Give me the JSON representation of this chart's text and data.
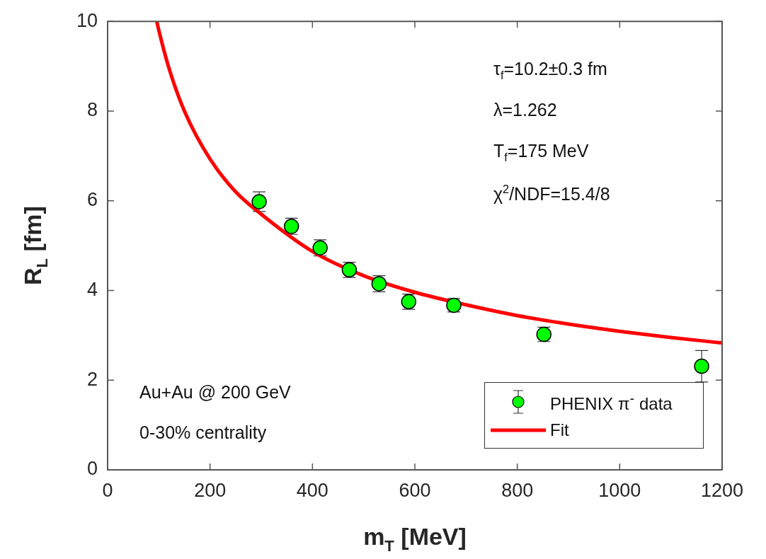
{
  "chart_data": {
    "type": "scatter",
    "xlabel": "m$_{T}$ [MeV]",
    "ylabel": "R$_{L}$ [fm]",
    "xlim": [
      0,
      1200
    ],
    "xticks": [
      0,
      200,
      400,
      600,
      800,
      1000,
      1200
    ],
    "ylim": [
      0,
      10
    ],
    "yticks": [
      0,
      2,
      4,
      6,
      8,
      10
    ],
    "grid": false,
    "legend": "bottom right",
    "marker": "circle",
    "series": [
      {
        "name": "PHENIX π$^{-}$ data",
        "color": "#00ff00",
        "x": [
          296,
          359,
          415,
          472,
          530,
          588,
          676,
          852,
          1160
        ],
        "values": [
          5.98,
          5.43,
          4.95,
          4.46,
          4.15,
          3.75,
          3.67,
          3.02,
          2.31
        ],
        "errors": [
          0.22,
          0.18,
          0.18,
          0.17,
          0.18,
          0.17,
          0.15,
          0.16,
          0.35
        ]
      },
      {
        "name": "Fit",
        "type": "line",
        "color": "#ff0000",
        "line_style": "solid",
        "marker": "none",
        "x": [
          96,
          100,
          120,
          150,
          200,
          250,
          300,
          400,
          500,
          600,
          700,
          800,
          900,
          1000,
          1100,
          1200
        ],
        "values": [
          10,
          9.8,
          8.95,
          8.0,
          6.93,
          6.2,
          5.7,
          4.87,
          4.33,
          3.96,
          3.68,
          3.44,
          3.25,
          3.09,
          2.95,
          2.83
        ]
      }
    ],
    "annotations": [
      "τ$_{f}$=10.2±0.3 fm",
      "λ=1.262",
      "T$_{f}$=175 MeV",
      "χ$^{2}$/NDF=15.4/8",
      "Au+Au @ 200 GeV",
      "0-30% centrality"
    ]
  }
}
